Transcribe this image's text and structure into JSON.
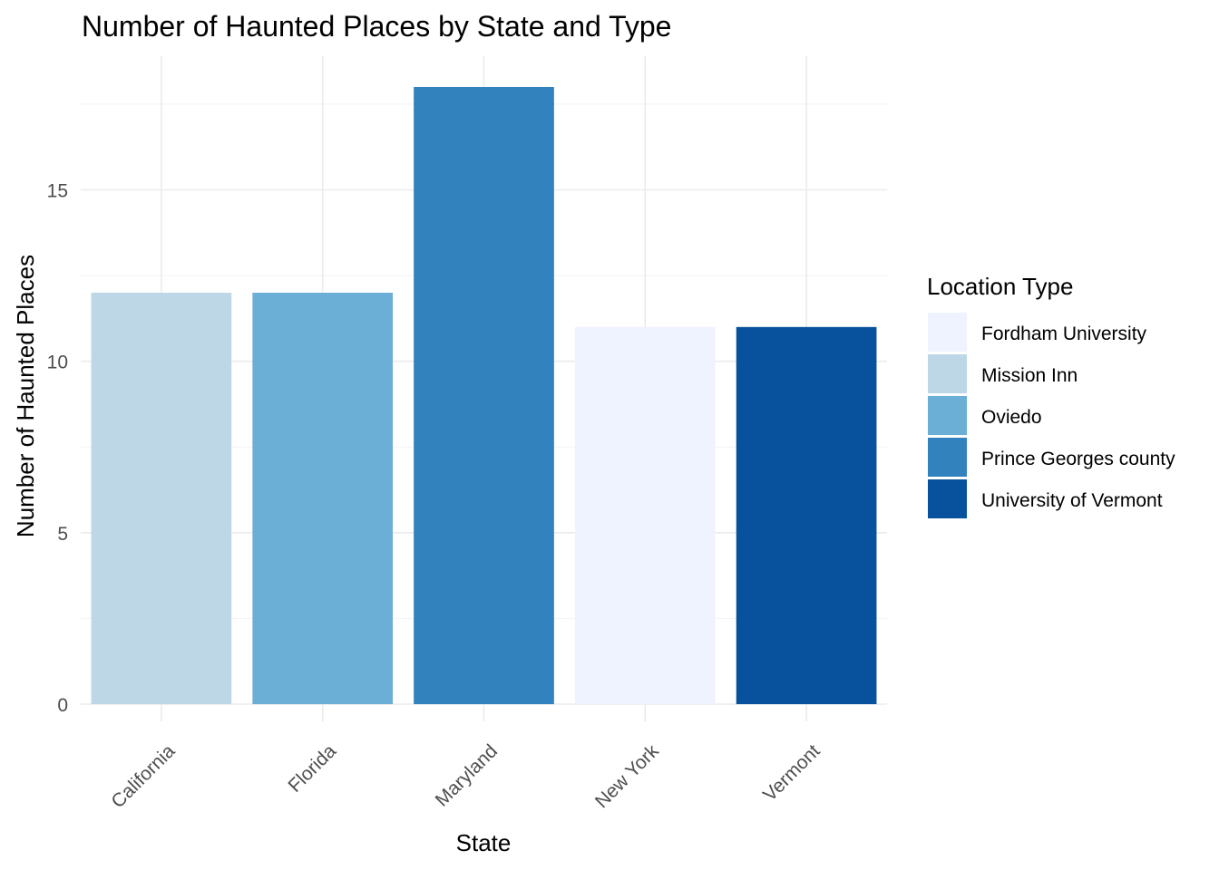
{
  "chart_data": {
    "type": "bar",
    "title": "Number of Haunted Places by State and Type",
    "xlabel": "State",
    "ylabel": "Number of Haunted Places",
    "categories": [
      "California",
      "Florida",
      "Maryland",
      "New York",
      "Vermont"
    ],
    "values": [
      12,
      12,
      18,
      11,
      11
    ],
    "bar_types": [
      "Mission Inn",
      "Oviedo",
      "Prince Georges county",
      "Fordham University",
      "University of Vermont"
    ],
    "ylim": [
      0,
      19
    ],
    "yticks": [
      0,
      5,
      10,
      15
    ],
    "grid": true,
    "legend": {
      "title": "Location Type",
      "position": "right",
      "entries": [
        {
          "label": "Fordham University",
          "color": "#eff3ff"
        },
        {
          "label": "Mission Inn",
          "color": "#bdd7e7"
        },
        {
          "label": "Oviedo",
          "color": "#6baed6"
        },
        {
          "label": "Prince Georges county",
          "color": "#3182bd"
        },
        {
          "label": "University of Vermont",
          "color": "#08519c"
        }
      ]
    }
  }
}
